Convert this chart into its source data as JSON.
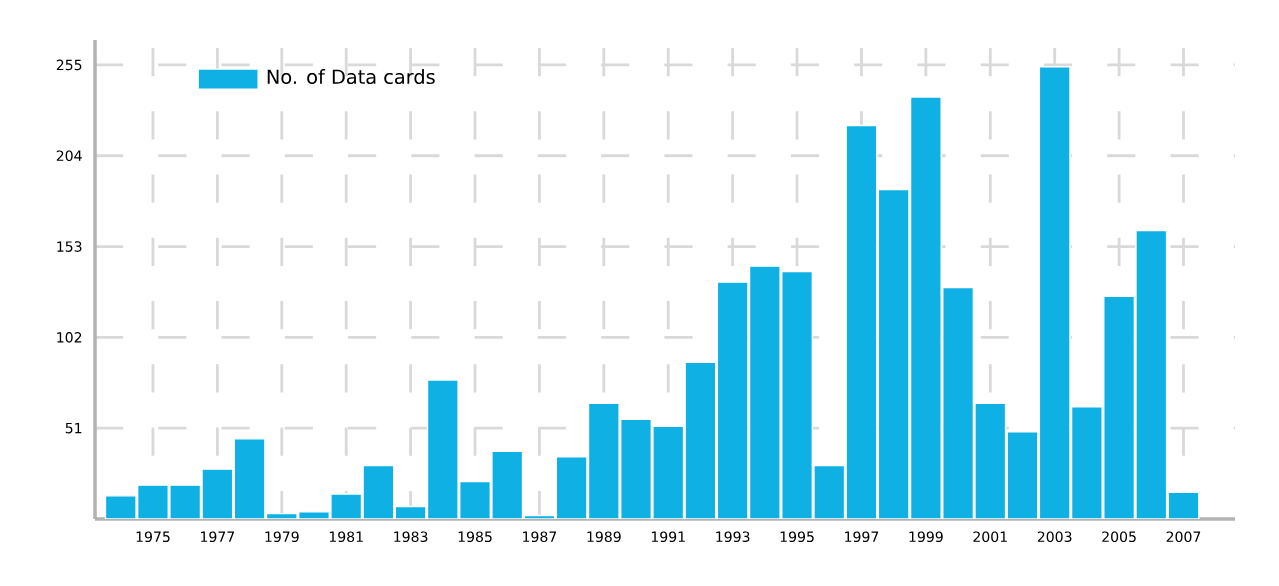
{
  "chart_data": {
    "type": "bar",
    "categories": [
      null,
      "1975",
      null,
      "1977",
      null,
      "1979",
      null,
      "1981",
      null,
      "1983",
      null,
      "1985",
      null,
      "1987",
      null,
      "1989",
      null,
      "1991",
      null,
      "1993",
      null,
      "1995",
      null,
      "1997",
      null,
      "1999",
      null,
      "2001",
      null,
      "2003",
      null,
      "2005",
      null,
      "2007"
    ],
    "series": [
      {
        "name": "No. of Data cards",
        "color": "#0fb0e4",
        "values": [
          13,
          19,
          19,
          28,
          45,
          3,
          4,
          14,
          30,
          7,
          78,
          21,
          38,
          2,
          35,
          65,
          56,
          52,
          88,
          133,
          142,
          139,
          30,
          221,
          185,
          237,
          130,
          65,
          49,
          254,
          63,
          125,
          162,
          15
        ]
      }
    ],
    "ylim": [
      0,
      269
    ],
    "yticks": [
      51,
      102,
      153,
      204,
      255
    ],
    "grid": true,
    "legend": "top left"
  }
}
